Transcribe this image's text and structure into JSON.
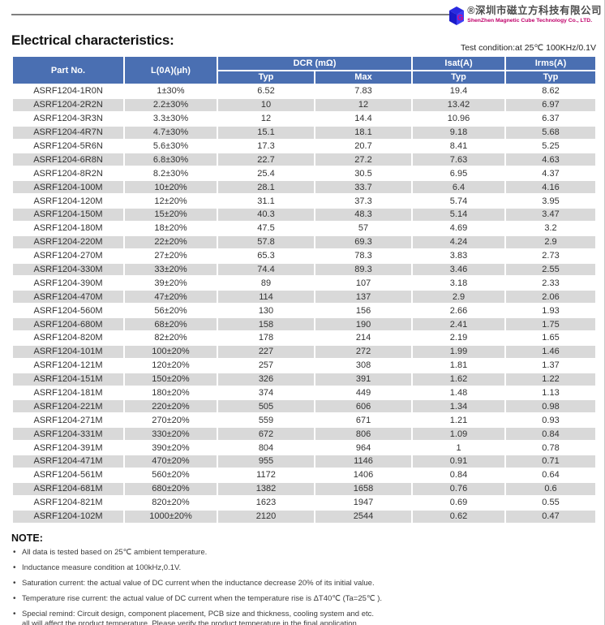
{
  "logo": {
    "company_cn": "®深圳市磁立方科技有限公司",
    "company_en": "ShenZhen Magnetic Cube Technology Co., LTD.",
    "icon": "magnetic-cube-logo",
    "brand_blue": "#2a2ae0",
    "brand_magenta": "#e6007e"
  },
  "header": {
    "title": "Electrical characteristics:",
    "test_condition": "Test condition:at 25℃ 100KHz/0.1V"
  },
  "table": {
    "colors": {
      "header_bg": "#4a6fb2",
      "header_text": "#ffffff",
      "row_alt_bg": "#d9d9d9",
      "row_bg": "#ffffff",
      "cell_text": "#333333"
    },
    "header": {
      "part_no": "Part No.",
      "l_0a": "L(0A)(μh)",
      "dcr": "DCR (mΩ)",
      "isat": "Isat(A)",
      "irms": "Irms(A)",
      "sub": [
        "Typ",
        "Max",
        "Typ",
        "Typ"
      ]
    },
    "rows": [
      [
        "ASRF1204-1R0N",
        "1±30%",
        "6.52",
        "7.83",
        "19.4",
        "8.62"
      ],
      [
        "ASRF1204-2R2N",
        "2.2±30%",
        "10",
        "12",
        "13.42",
        "6.97"
      ],
      [
        "ASRF1204-3R3N",
        "3.3±30%",
        "12",
        "14.4",
        "10.96",
        "6.37"
      ],
      [
        "ASRF1204-4R7N",
        "4.7±30%",
        "15.1",
        "18.1",
        "9.18",
        "5.68"
      ],
      [
        "ASRF1204-5R6N",
        "5.6±30%",
        "17.3",
        "20.7",
        "8.41",
        "5.25"
      ],
      [
        "ASRF1204-6R8N",
        "6.8±30%",
        "22.7",
        "27.2",
        "7.63",
        "4.63"
      ],
      [
        "ASRF1204-8R2N",
        "8.2±30%",
        "25.4",
        "30.5",
        "6.95",
        "4.37"
      ],
      [
        "ASRF1204-100M",
        "10±20%",
        "28.1",
        "33.7",
        "6.4",
        "4.16"
      ],
      [
        "ASRF1204-120M",
        "12±20%",
        "31.1",
        "37.3",
        "5.74",
        "3.95"
      ],
      [
        "ASRF1204-150M",
        "15±20%",
        "40.3",
        "48.3",
        "5.14",
        "3.47"
      ],
      [
        "ASRF1204-180M",
        "18±20%",
        "47.5",
        "57",
        "4.69",
        "3.2"
      ],
      [
        "ASRF1204-220M",
        "22±20%",
        "57.8",
        "69.3",
        "4.24",
        "2.9"
      ],
      [
        "ASRF1204-270M",
        "27±20%",
        "65.3",
        "78.3",
        "3.83",
        "2.73"
      ],
      [
        "ASRF1204-330M",
        "33±20%",
        "74.4",
        "89.3",
        "3.46",
        "2.55"
      ],
      [
        "ASRF1204-390M",
        "39±20%",
        "89",
        "107",
        "3.18",
        "2.33"
      ],
      [
        "ASRF1204-470M",
        "47±20%",
        "114",
        "137",
        "2.9",
        "2.06"
      ],
      [
        "ASRF1204-560M",
        "56±20%",
        "130",
        "156",
        "2.66",
        "1.93"
      ],
      [
        "ASRF1204-680M",
        "68±20%",
        "158",
        "190",
        "2.41",
        "1.75"
      ],
      [
        "ASRF1204-820M",
        "82±20%",
        "178",
        "214",
        "2.19",
        "1.65"
      ],
      [
        "ASRF1204-101M",
        "100±20%",
        "227",
        "272",
        "1.99",
        "1.46"
      ],
      [
        "ASRF1204-121M",
        "120±20%",
        "257",
        "308",
        "1.81",
        "1.37"
      ],
      [
        "ASRF1204-151M",
        "150±20%",
        "326",
        "391",
        "1.62",
        "1.22"
      ],
      [
        "ASRF1204-181M",
        "180±20%",
        "374",
        "449",
        "1.48",
        "1.13"
      ],
      [
        "ASRF1204-221M",
        "220±20%",
        "505",
        "606",
        "1.34",
        "0.98"
      ],
      [
        "ASRF1204-271M",
        "270±20%",
        "559",
        "671",
        "1.21",
        "0.93"
      ],
      [
        "ASRF1204-331M",
        "330±20%",
        "672",
        "806",
        "1.09",
        "0.84"
      ],
      [
        "ASRF1204-391M",
        "390±20%",
        "804",
        "964",
        "1",
        "0.78"
      ],
      [
        "ASRF1204-471M",
        "470±20%",
        "955",
        "1146",
        "0.91",
        "0.71"
      ],
      [
        "ASRF1204-561M",
        "560±20%",
        "1172",
        "1406",
        "0.84",
        "0.64"
      ],
      [
        "ASRF1204-681M",
        "680±20%",
        "1382",
        "1658",
        "0.76",
        "0.6"
      ],
      [
        "ASRF1204-821M",
        "820±20%",
        "1623",
        "1947",
        "0.69",
        "0.55"
      ],
      [
        "ASRF1204-102M",
        "1000±20%",
        "2120",
        "2544",
        "0.62",
        "0.47"
      ]
    ]
  },
  "notes": {
    "heading": "NOTE:",
    "items": [
      "All data is tested based on 25℃ ambient temperature.",
      "Inductance measure condition at 100kHz,0.1V.",
      "Saturation current: the actual value of DC current when the inductance decrease 20% of its initial value.",
      "Temperature rise current: the actual value of DC current when the temperature rise is ΔT40℃ (Ta=25℃ ).",
      "Special remind: Circuit design, component placement, PCB size and thickness, cooling system and etc.\nall will affect the product temperature. Please verify the product temperature in the final application."
    ]
  }
}
